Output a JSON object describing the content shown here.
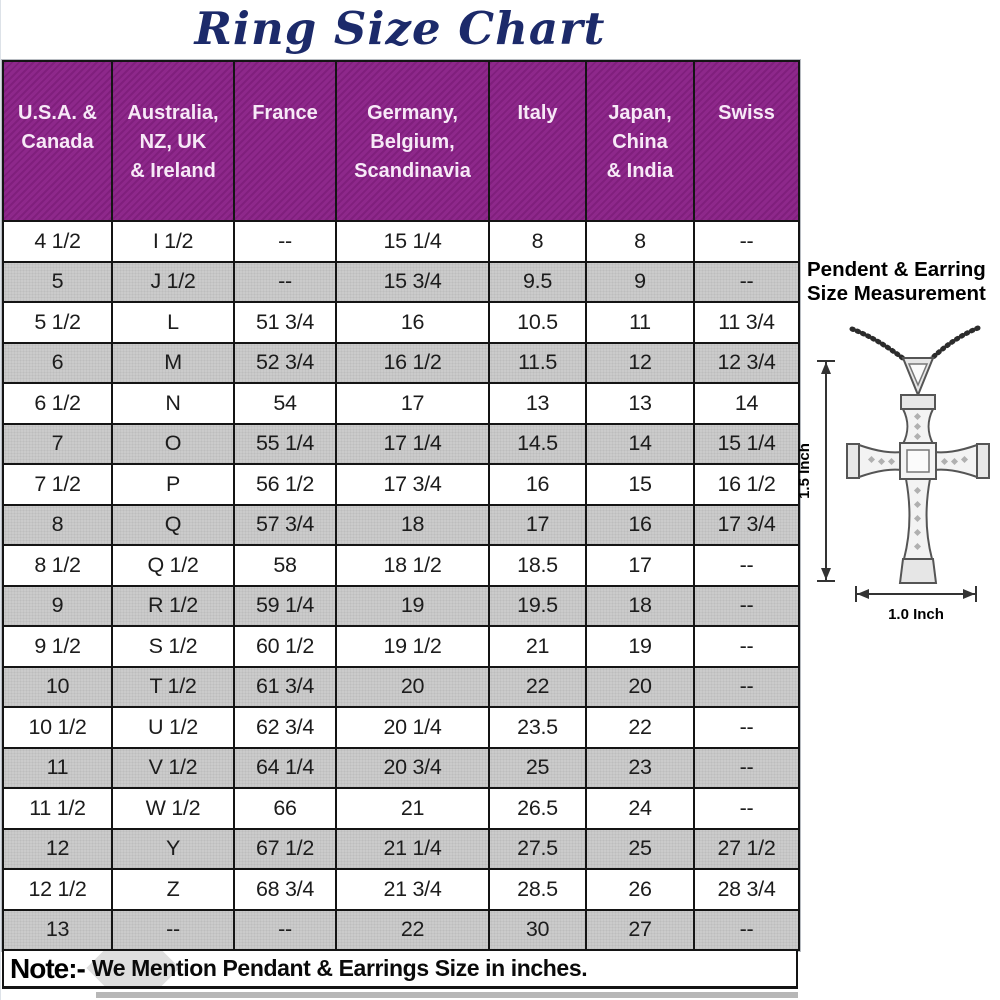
{
  "title": "Ring Size Chart",
  "table": {
    "columns": [
      [
        "U.S.A. &",
        "Canada"
      ],
      [
        "Australia,",
        "NZ, UK",
        "& Ireland"
      ],
      [
        "France"
      ],
      [
        "Germany,",
        "Belgium,",
        "Scandinavia"
      ],
      [
        "Italy"
      ],
      [
        "Japan,",
        "China",
        "& India"
      ],
      [
        "Swiss"
      ]
    ],
    "rows": [
      [
        "4 1/2",
        "I 1/2",
        "--",
        "15 1/4",
        "8",
        "8",
        "--"
      ],
      [
        "5",
        "J 1/2",
        "--",
        "15 3/4",
        "9.5",
        "9",
        "--"
      ],
      [
        "5 1/2",
        "L",
        "51 3/4",
        "16",
        "10.5",
        "11",
        "11 3/4"
      ],
      [
        "6",
        "M",
        "52 3/4",
        "16 1/2",
        "11.5",
        "12",
        "12 3/4"
      ],
      [
        "6 1/2",
        "N",
        "54",
        "17",
        "13",
        "13",
        "14"
      ],
      [
        "7",
        "O",
        "55 1/4",
        "17 1/4",
        "14.5",
        "14",
        "15 1/4"
      ],
      [
        "7 1/2",
        "P",
        "56 1/2",
        "17 3/4",
        "16",
        "15",
        "16 1/2"
      ],
      [
        "8",
        "Q",
        "57 3/4",
        "18",
        "17",
        "16",
        "17 3/4"
      ],
      [
        "8 1/2",
        "Q 1/2",
        "58",
        "18 1/2",
        "18.5",
        "17",
        "--"
      ],
      [
        "9",
        "R 1/2",
        "59 1/4",
        "19",
        "19.5",
        "18",
        "--"
      ],
      [
        "9 1/2",
        "S 1/2",
        "60 1/2",
        "19 1/2",
        "21",
        "19",
        "--"
      ],
      [
        "10",
        "T 1/2",
        "61 3/4",
        "20",
        "22",
        "20",
        "--"
      ],
      [
        "10 1/2",
        "U 1/2",
        "62 3/4",
        "20 1/4",
        "23.5",
        "22",
        "--"
      ],
      [
        "11",
        "V 1/2",
        "64 1/4",
        "20 3/4",
        "25",
        "23",
        "--"
      ],
      [
        "11 1/2",
        "W 1/2",
        "66",
        "21",
        "26.5",
        "24",
        "--"
      ],
      [
        "12",
        "Y",
        "67 1/2",
        "21 1/4",
        "27.5",
        "25",
        "27 1/2"
      ],
      [
        "12 1/2",
        "Z",
        "68 3/4",
        "21 3/4",
        "28.5",
        "26",
        "28 3/4"
      ],
      [
        "13",
        "--",
        "--",
        "22",
        "30",
        "27",
        "--"
      ]
    ]
  },
  "note": {
    "label": "Note:-",
    "text": "We Mention Pendant & Earrings Size in inches."
  },
  "side_panel": {
    "heading_line1": "Pendent & Earring",
    "heading_line2": "Size Measurement",
    "height_label": "1.5 Inch",
    "width_label": "1.0 Inch"
  },
  "colors": {
    "header_bg": "#8A2187",
    "header_text": "#F7E9F7",
    "row_bg": "#FFFFFF",
    "row_alt_bg": "#CBCBCB",
    "title_color": "#1C2A6A",
    "border": "#141414"
  }
}
